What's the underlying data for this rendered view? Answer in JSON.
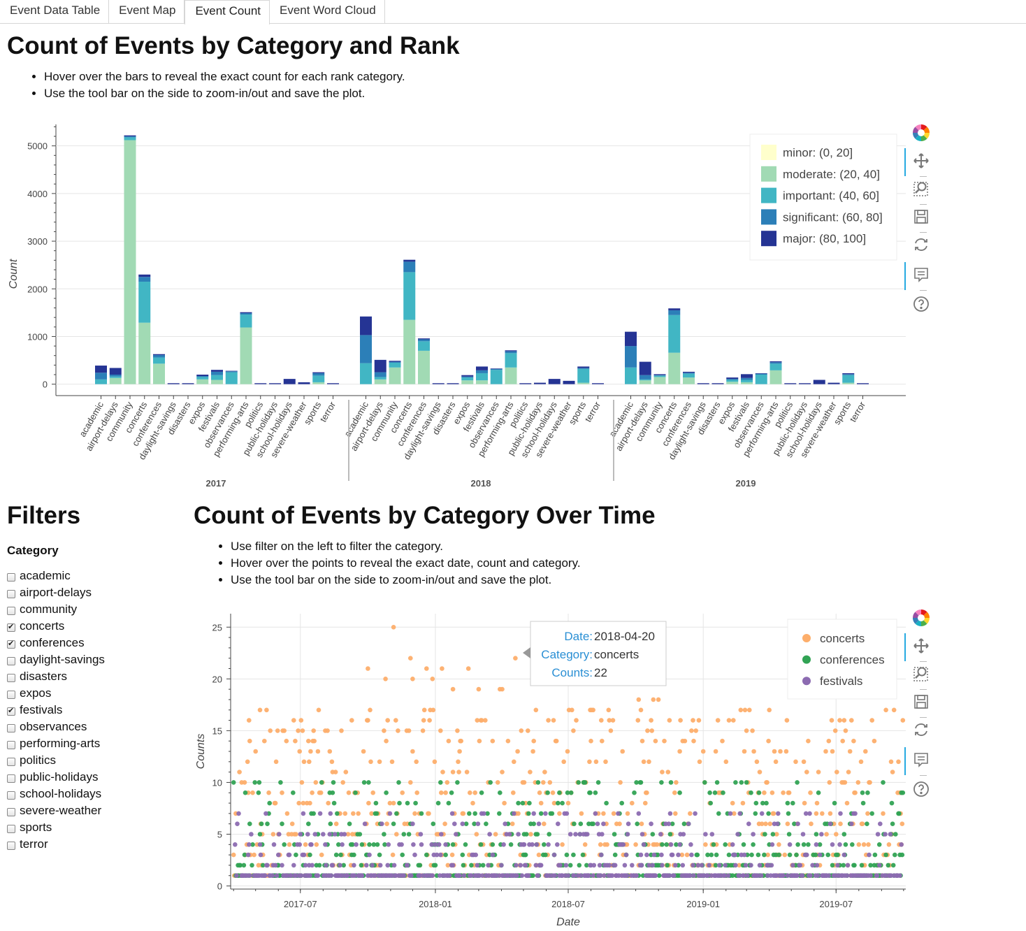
{
  "tabs": [
    {
      "label": "Event Data Table"
    },
    {
      "label": "Event Map"
    },
    {
      "label": "Event Count"
    },
    {
      "label": "Event Word Cloud"
    }
  ],
  "section1": {
    "title": "Count of Events by Category and Rank",
    "bullets": [
      "Hover over the bars to reveal the exact count for each rank category.",
      "Use the tool bar on the side to zoom-in/out and save the plot."
    ]
  },
  "filters": {
    "title": "Filters",
    "category_label": "Category",
    "items": [
      {
        "label": "academic",
        "checked": false
      },
      {
        "label": "airport-delays",
        "checked": false
      },
      {
        "label": "community",
        "checked": false
      },
      {
        "label": "concerts",
        "checked": true
      },
      {
        "label": "conferences",
        "checked": true
      },
      {
        "label": "daylight-savings",
        "checked": false
      },
      {
        "label": "disasters",
        "checked": false
      },
      {
        "label": "expos",
        "checked": false
      },
      {
        "label": "festivals",
        "checked": true
      },
      {
        "label": "observances",
        "checked": false
      },
      {
        "label": "performing-arts",
        "checked": false
      },
      {
        "label": "politics",
        "checked": false
      },
      {
        "label": "public-holidays",
        "checked": false
      },
      {
        "label": "school-holidays",
        "checked": false
      },
      {
        "label": "severe-weather",
        "checked": false
      },
      {
        "label": "sports",
        "checked": false
      },
      {
        "label": "terror",
        "checked": false
      }
    ]
  },
  "section2": {
    "title": "Count of Events by Category Over Time",
    "bullets": [
      "Use filter on the left to filter the category.",
      "Hover over the points to reveal the exact date, count and category.",
      "Use the tool bar on the side to zoom-in/out and save the plot."
    ],
    "tooltip": {
      "date_key": "Date:",
      "date_val": "2018-04-20",
      "cat_key": "Category:",
      "cat_val": "concerts",
      "cnt_key": "Counts:",
      "cnt_val": "22"
    }
  },
  "toolbar_icons": [
    "bokeh-logo-icon",
    "pan-icon",
    "box-zoom-icon",
    "save-icon",
    "reset-icon",
    "hover-icon",
    "help-icon"
  ],
  "chart_data": [
    {
      "type": "bar",
      "stacked": true,
      "title": "",
      "xlabel": "",
      "ylabel": "Count",
      "ylim": [
        -240,
        5450
      ],
      "yticks": [
        0,
        1000,
        2000,
        3000,
        4000,
        5000
      ],
      "legend_position": "top-right",
      "groups": [
        "2017",
        "2018",
        "2019"
      ],
      "categories": [
        "academic",
        "airport-delays",
        "community",
        "concerts",
        "conferences",
        "daylight-savings",
        "disasters",
        "expos",
        "festivals",
        "observances",
        "performing-arts",
        "politics",
        "public-holidays",
        "school-holidays",
        "severe-weather",
        "sports",
        "terror"
      ],
      "series": [
        {
          "name": "minor: (0, 20]",
          "color": "#ffffcc",
          "values": [
            [
              0,
              0,
              0,
              0,
              0,
              0,
              0,
              0,
              0,
              0,
              0,
              0,
              0,
              0,
              0,
              0,
              0
            ],
            [
              0,
              0,
              0,
              0,
              0,
              0,
              0,
              0,
              0,
              0,
              0,
              0,
              0,
              0,
              0,
              0,
              0
            ],
            [
              0,
              0,
              0,
              0,
              0,
              0,
              0,
              0,
              0,
              0,
              0,
              0,
              0,
              0,
              0,
              0,
              0
            ]
          ]
        },
        {
          "name": "moderate: (20, 40]",
          "color": "#a1dab4",
          "values": [
            [
              0,
              130,
              5120,
              1290,
              430,
              0,
              0,
              100,
              90,
              0,
              1190,
              0,
              0,
              0,
              0,
              40,
              0
            ],
            [
              0,
              100,
              350,
              1350,
              700,
              0,
              0,
              80,
              80,
              0,
              350,
              0,
              0,
              0,
              0,
              30,
              0
            ],
            [
              0,
              80,
              150,
              660,
              140,
              0,
              0,
              50,
              40,
              0,
              290,
              0,
              0,
              0,
              0,
              30,
              0
            ]
          ]
        },
        {
          "name": "important: (40, 60]",
          "color": "#41b6c4",
          "values": [
            [
              100,
              30,
              60,
              860,
              130,
              0,
              0,
              50,
              100,
              250,
              270,
              0,
              0,
              0,
              0,
              140,
              0
            ],
            [
              440,
              50,
              100,
              1000,
              200,
              0,
              0,
              60,
              150,
              300,
              300,
              0,
              0,
              0,
              0,
              290,
              0
            ],
            [
              350,
              20,
              30,
              790,
              80,
              0,
              0,
              40,
              50,
              200,
              140,
              0,
              0,
              0,
              0,
              160,
              0
            ]
          ]
        },
        {
          "name": "significant: (60, 80]",
          "color": "#2c7fb8",
          "values": [
            [
              140,
              40,
              20,
              100,
              50,
              0,
              0,
              20,
              70,
              20,
              30,
              0,
              0,
              0,
              0,
              50,
              0
            ],
            [
              590,
              100,
              20,
              220,
              40,
              0,
              0,
              20,
              60,
              20,
              40,
              0,
              0,
              0,
              0,
              20,
              0
            ],
            [
              450,
              90,
              10,
              100,
              20,
              0,
              0,
              20,
              40,
              20,
              30,
              0,
              0,
              0,
              0,
              20,
              0
            ]
          ]
        },
        {
          "name": "major: (80, 100]",
          "color": "#253494",
          "values": [
            [
              150,
              140,
              20,
              50,
              20,
              20,
              20,
              30,
              40,
              10,
              20,
              20,
              20,
              110,
              40,
              20,
              20
            ],
            [
              390,
              260,
              20,
              40,
              20,
              20,
              20,
              30,
              80,
              10,
              20,
              20,
              30,
              110,
              70,
              30,
              20
            ],
            [
              300,
              280,
              20,
              40,
              20,
              20,
              20,
              30,
              80,
              10,
              20,
              20,
              20,
              90,
              30,
              20,
              20
            ]
          ]
        }
      ]
    },
    {
      "type": "scatter",
      "title": "",
      "xlabel": "Date",
      "ylabel": "Counts",
      "x_range": [
        "2017-03-28",
        "2019-10-04"
      ],
      "ylim": [
        -0.3,
        26.3
      ],
      "xticks": [
        "2017-07",
        "2018-01",
        "2018-07",
        "2019-01",
        "2019-07"
      ],
      "yticks": [
        0,
        5,
        10,
        15,
        20,
        25
      ],
      "legend_position": "top-right",
      "series": [
        {
          "name": "concerts",
          "color": "#fdae6b",
          "daily_counts_from": "2017-04-01",
          "daily_counts_to": "2019-09-30",
          "peaks": [
            {
              "x": "2017-11-05",
              "y": 25
            },
            {
              "x": "2017-11-28",
              "y": 22
            },
            {
              "x": "2018-04-20",
              "y": 22
            },
            {
              "x": "2017-10-01",
              "y": 21
            },
            {
              "x": "2017-12-20",
              "y": 21
            },
            {
              "x": "2018-01-10",
              "y": 21
            },
            {
              "x": "2018-02-15",
              "y": 21
            },
            {
              "x": "2017-10-25",
              "y": 20
            },
            {
              "x": "2017-12-01",
              "y": 20
            },
            {
              "x": "2017-12-28",
              "y": 20
            },
            {
              "x": "2018-01-25",
              "y": 19
            },
            {
              "x": "2018-03-01",
              "y": 19
            },
            {
              "x": "2018-03-30",
              "y": 19
            },
            {
              "x": "2018-04-02",
              "y": 19
            },
            {
              "x": "2018-10-05",
              "y": 18
            },
            {
              "x": "2018-10-25",
              "y": 18
            },
            {
              "x": "2018-11-01",
              "y": 18
            }
          ]
        },
        {
          "name": "conferences",
          "color": "#31a354",
          "daily_counts_from": "2017-04-01",
          "daily_counts_to": "2019-09-30"
        },
        {
          "name": "festivals",
          "color": "#8c6bb1",
          "daily_counts_from": "2017-04-01",
          "daily_counts_to": "2019-09-30"
        }
      ]
    }
  ]
}
